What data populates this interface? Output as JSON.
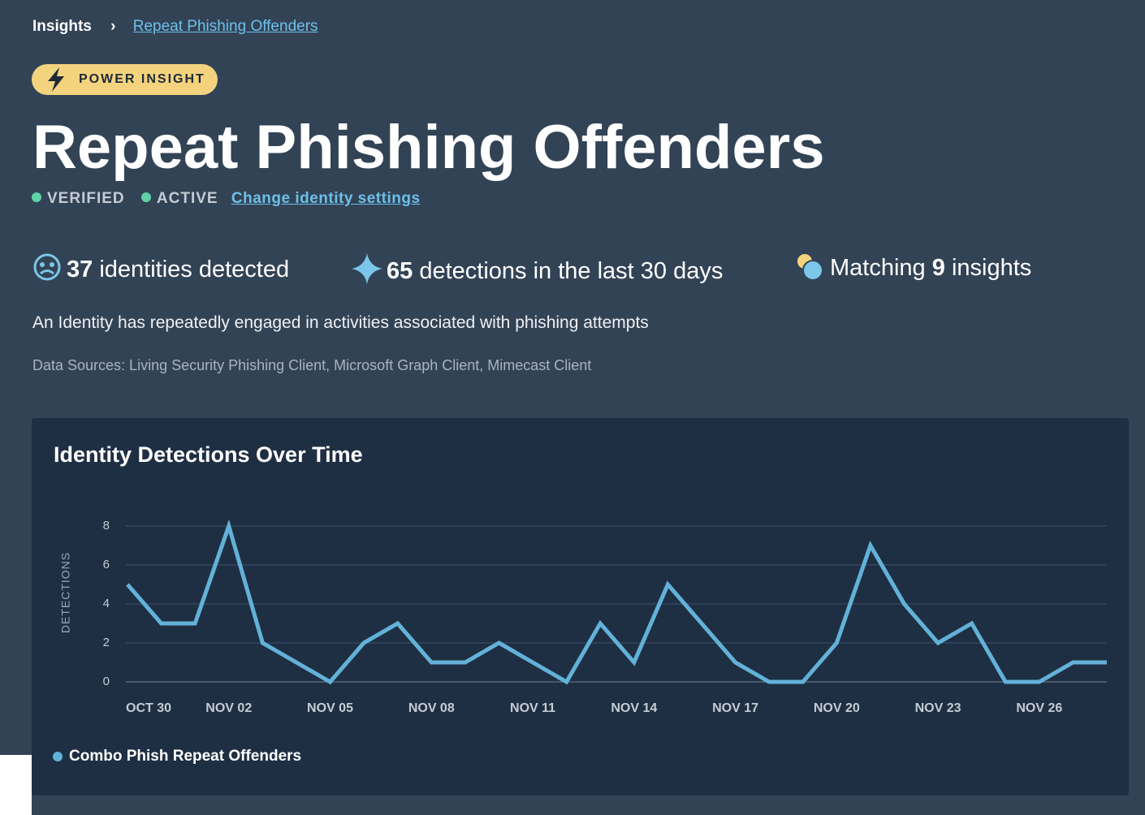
{
  "breadcrumb": {
    "parent": "Insights",
    "current": "Repeat Phishing Offenders"
  },
  "badge": "POWER INSIGHT",
  "title": "Repeat Phishing Offenders",
  "status": {
    "verified": "VERIFIED",
    "active": "ACTIVE",
    "link": "Change identity settings"
  },
  "stats": [
    {
      "value": 37,
      "text": "identities detected"
    },
    {
      "value": 65,
      "text": "detections in the last 30 days"
    },
    {
      "prefix": "Matching",
      "value": 9,
      "text": "insights"
    }
  ],
  "description": "An Identity has repeatedly engaged in activities associated with phishing attempts",
  "data_sources": "Data Sources: Living Security Phishing Client, Microsoft Graph Client, Mimecast Client",
  "chart_data": {
    "type": "line",
    "title": "Identity Detections Over Time",
    "y_label": "DETECTIONS",
    "categories": [
      "OCT 30",
      null,
      null,
      "NOV 02",
      null,
      null,
      "NOV 05",
      null,
      null,
      "NOV 08",
      null,
      null,
      "NOV 11",
      null,
      null,
      "NOV 14",
      null,
      null,
      "NOV 17",
      null,
      null,
      "NOV 20",
      null,
      null,
      "NOV 23",
      null,
      null,
      "NOV 26",
      null,
      null
    ],
    "series": [
      {
        "name": "Combo Phish Repeat Offenders",
        "color": "#62b1d8",
        "values": [
          5,
          3,
          3,
          8,
          2,
          1,
          0,
          2,
          3,
          1,
          1,
          2,
          1,
          0,
          3,
          1,
          5,
          3,
          1,
          0,
          0,
          2,
          7,
          4,
          2,
          3,
          0,
          0,
          1,
          1
        ]
      }
    ],
    "ylim": [
      0,
      8
    ],
    "yticks": [
      0,
      2,
      4,
      6,
      8
    ],
    "grid": true,
    "legend": "bottom-left"
  }
}
